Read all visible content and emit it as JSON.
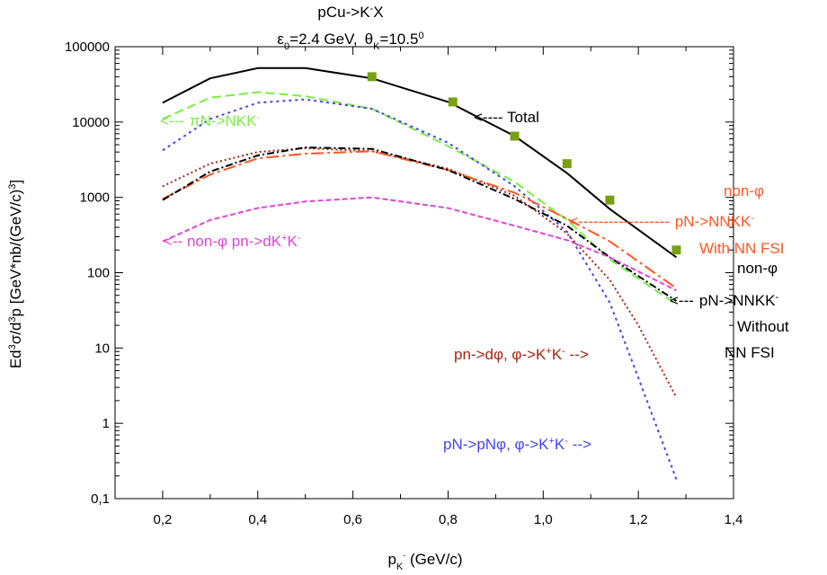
{
  "chart_data": {
    "type": "line",
    "title": {
      "line1": {
        "base": "pCu->K",
        "sup": "-",
        "tail": "X"
      },
      "line2": {
        "eps": "ε",
        "eps_sub": "0",
        "eps_val": "=2.4 GeV,",
        "theta": "θ",
        "theta_sub": "K",
        "theta_val": "=10.5",
        "theta_sup": "0"
      }
    },
    "xlabel": {
      "base": "p",
      "sub": "K",
      "subsup": "-",
      "tail": " (GeV/c)"
    },
    "ylabel": {
      "p1": "Ed",
      "s1": "3",
      "p2": "σ/d",
      "s2": "3",
      "p3": "p [GeV*nb/(GeV/c)",
      "s3": "3",
      "p4": "]"
    },
    "xlim": [
      0.1,
      1.4
    ],
    "ylim": [
      0.1,
      100000
    ],
    "yscale": "log",
    "grid": false,
    "x_ticks": [
      {
        "v": 0.2,
        "label": "0,2"
      },
      {
        "v": 0.4,
        "label": "0,4"
      },
      {
        "v": 0.6,
        "label": "0,6"
      },
      {
        "v": 0.8,
        "label": "0,8"
      },
      {
        "v": 1.0,
        "label": "1,0"
      },
      {
        "v": 1.2,
        "label": "1,2"
      },
      {
        "v": 1.4,
        "label": "1,4"
      }
    ],
    "y_ticks": [
      {
        "v": 0.1,
        "label": "0,1"
      },
      {
        "v": 1,
        "label": "1"
      },
      {
        "v": 10,
        "label": "10"
      },
      {
        "v": 100,
        "label": "100"
      },
      {
        "v": 1000,
        "label": "1000"
      },
      {
        "v": 10000,
        "label": "10000"
      },
      {
        "v": 100000,
        "label": "100000"
      }
    ],
    "series": [
      {
        "id": "total",
        "color": "#000000",
        "dash": "",
        "width": 2,
        "x": [
          0.2,
          0.3,
          0.4,
          0.5,
          0.64,
          0.8,
          0.94,
          1.05,
          1.14,
          1.28
        ],
        "y": [
          18000,
          38000,
          52000,
          52000,
          38000,
          18500,
          6500,
          2100,
          700,
          160
        ]
      },
      {
        "id": "piN-NKK",
        "color": "#77ee44",
        "dash": "10,5",
        "width": 2,
        "x": [
          0.2,
          0.3,
          0.4,
          0.5,
          0.64,
          0.8,
          0.94,
          1.05,
          1.14,
          1.28
        ],
        "y": [
          11000,
          21000,
          25000,
          22000,
          15000,
          4800,
          1600,
          500,
          150,
          38
        ]
      },
      {
        "id": "pN-pNphi",
        "color": "#4444ee",
        "dash": "3,4",
        "width": 2,
        "x": [
          0.2,
          0.3,
          0.4,
          0.5,
          0.64,
          0.8,
          0.94,
          1.05,
          1.14,
          1.2,
          1.28
        ],
        "y": [
          4200,
          11000,
          18000,
          20000,
          15000,
          5300,
          1400,
          350,
          40,
          4,
          0.18
        ]
      },
      {
        "id": "pn-dphi",
        "color": "#aa2211",
        "dash": "2,3",
        "width": 2,
        "x": [
          0.2,
          0.3,
          0.4,
          0.5,
          0.64,
          0.8,
          0.94,
          1.05,
          1.14,
          1.2,
          1.28
        ],
        "y": [
          1400,
          2800,
          4000,
          4500,
          4100,
          2400,
          1050,
          330,
          80,
          20,
          2.2
        ]
      },
      {
        "id": "nonphi-FSI",
        "color": "#ff5522",
        "dash": "14,4,3,4",
        "width": 2,
        "x": [
          0.2,
          0.3,
          0.4,
          0.5,
          0.64,
          0.8,
          0.94,
          1.05,
          1.14,
          1.28
        ],
        "y": [
          950,
          2000,
          3300,
          3800,
          4100,
          2300,
          1150,
          520,
          260,
          62
        ]
      },
      {
        "id": "nonphi-noFSI",
        "color": "#000000",
        "dash": "8,3,2,3",
        "width": 2,
        "x": [
          0.2,
          0.3,
          0.4,
          0.5,
          0.64,
          0.8,
          0.94,
          1.05,
          1.14,
          1.28
        ],
        "y": [
          920,
          2200,
          3600,
          4600,
          4400,
          2300,
          950,
          420,
          160,
          42
        ]
      },
      {
        "id": "pn-dKK",
        "color": "#dd44dd",
        "dash": "6,3",
        "width": 2,
        "x": [
          0.2,
          0.3,
          0.4,
          0.5,
          0.64,
          0.8,
          0.94,
          1.05,
          1.14,
          1.28
        ],
        "y": [
          260,
          500,
          720,
          880,
          1000,
          720,
          420,
          270,
          160,
          58
        ]
      }
    ],
    "data_points": {
      "color": "#77a112",
      "x": [
        0.64,
        0.81,
        0.94,
        1.05,
        1.14,
        1.28
      ],
      "y": [
        40000,
        18500,
        6500,
        2800,
        920,
        200
      ],
      "err": [
        0.09,
        0.05,
        0.05,
        0.05,
        0.06,
        0.08
      ]
    },
    "annotations": {
      "total": {
        "text": "<---- Total",
        "color": "#000000"
      },
      "piN": {
        "arrow": "<---",
        "base": "πN->NKK",
        "sup": "-",
        "color": "#77ee44"
      },
      "pn_dKK": {
        "pre": "<-- non-φ  pn->dK",
        "sup1": "+",
        "mid": "K",
        "sup2": "-",
        "color": "#dd44dd"
      },
      "fsi_line1": {
        "text": "non-φ",
        "color": "#ff5522"
      },
      "fsi_line2": {
        "arrow": "<------------------",
        "base": "pN->NNKK",
        "sup": "-",
        "color": "#ff5522"
      },
      "fsi_line3": {
        "text": "With NN FSI",
        "color": "#ff5522"
      },
      "nofsi_line1": {
        "text": "non-φ",
        "color": "#000000"
      },
      "nofsi_line2": {
        "arrow": "<---",
        "base": "pN->NNKK",
        "sup": "-",
        "color": "#000000"
      },
      "nofsi_line3": {
        "text": "Without",
        "color": "#000000"
      },
      "nofsi_line4": {
        "text": "NN FSI",
        "color": "#000000"
      },
      "dphi": {
        "pre": "pn->dφ, φ->K",
        "sup1": "+",
        "mid": "K",
        "sup2": "-",
        "tail": " -->",
        "color": "#aa2211"
      },
      "pNphi": {
        "pre": "pN->pNφ, φ->K",
        "sup1": "+",
        "mid": "K",
        "sup2": "-",
        "tail": " -->",
        "color": "#4444ee"
      }
    }
  }
}
